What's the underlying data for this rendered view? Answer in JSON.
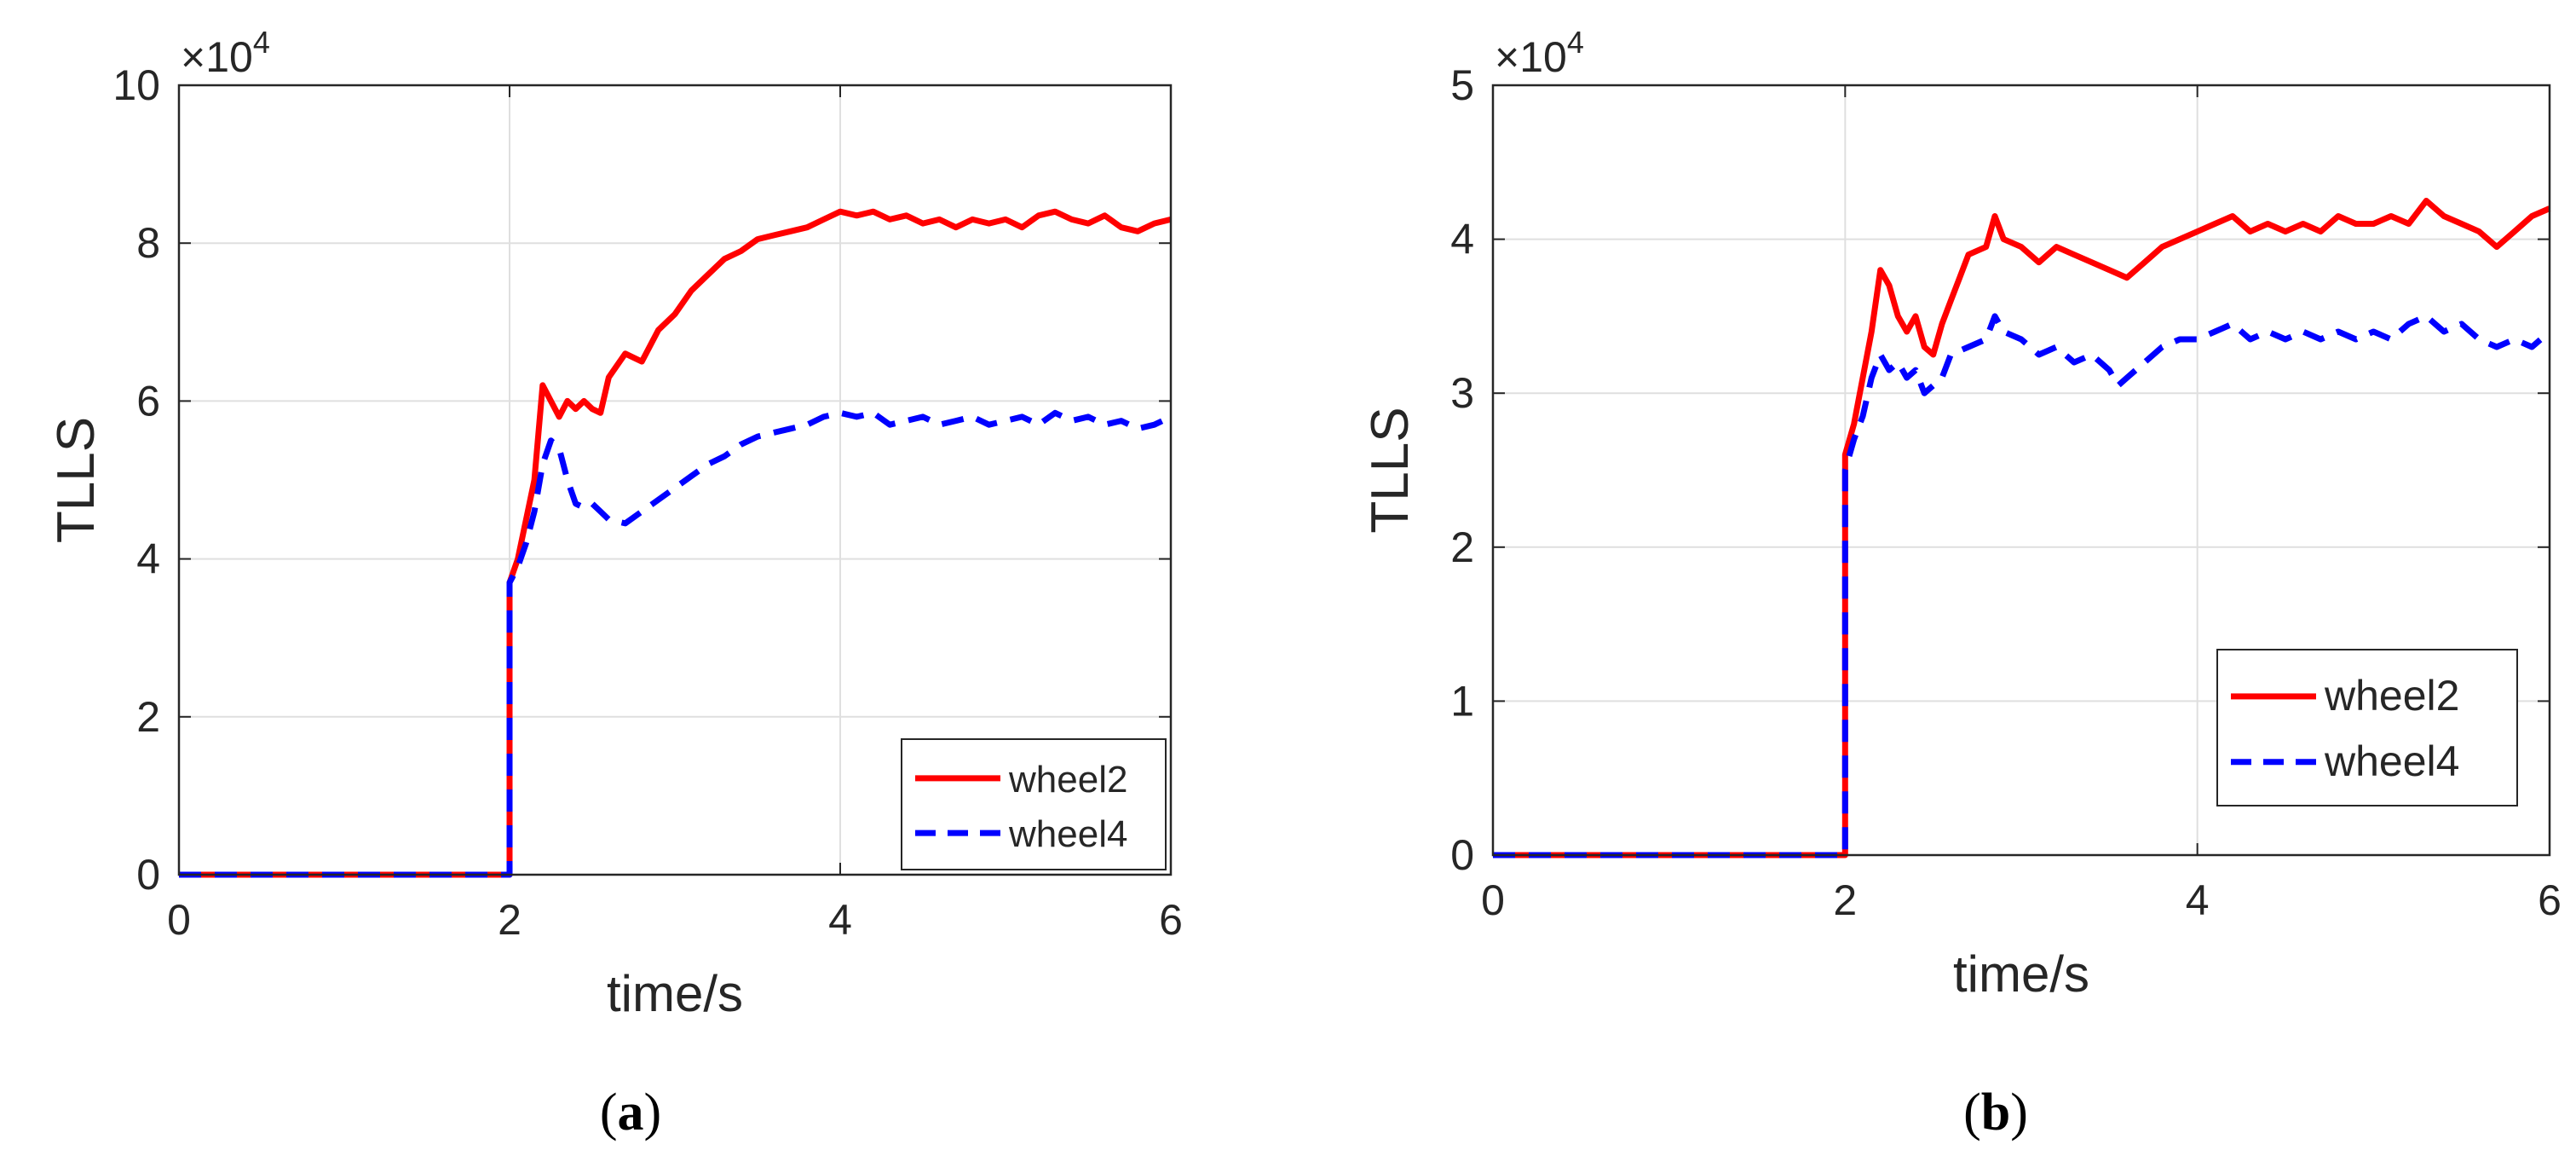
{
  "chart_data": [
    {
      "type": "line",
      "panel_label": "(a)",
      "xlabel": "time/s",
      "ylabel": "TLLS",
      "xlim": [
        0,
        6
      ],
      "ylim": [
        0,
        10
      ],
      "y_scale_label": "×10^4",
      "y_multiplier": 10000,
      "x_ticks": [
        0,
        2,
        4,
        6
      ],
      "y_ticks": [
        0,
        2,
        4,
        6,
        8,
        10
      ],
      "x_tick_labels": [
        "0",
        "2",
        "4",
        "6"
      ],
      "y_tick_labels": [
        "0",
        "2",
        "4",
        "6",
        "8",
        "10"
      ],
      "grid": true,
      "legend": {
        "position": "bottom-right",
        "entries": [
          "wheel2",
          "wheel4"
        ]
      },
      "series": [
        {
          "name": "wheel2",
          "color": "#ff0000",
          "style": "solid",
          "points": [
            [
              0,
              0
            ],
            [
              2.0,
              0
            ],
            [
              2.0,
              3.7
            ],
            [
              2.05,
              4.0
            ],
            [
              2.1,
              4.5
            ],
            [
              2.15,
              5.0
            ],
            [
              2.2,
              6.2
            ],
            [
              2.25,
              6.0
            ],
            [
              2.3,
              5.8
            ],
            [
              2.35,
              6.0
            ],
            [
              2.4,
              5.9
            ],
            [
              2.45,
              6.0
            ],
            [
              2.5,
              5.9
            ],
            [
              2.55,
              5.85
            ],
            [
              2.6,
              6.3
            ],
            [
              2.7,
              6.6
            ],
            [
              2.8,
              6.5
            ],
            [
              2.9,
              6.9
            ],
            [
              3.0,
              7.1
            ],
            [
              3.1,
              7.4
            ],
            [
              3.2,
              7.6
            ],
            [
              3.3,
              7.8
            ],
            [
              3.4,
              7.9
            ],
            [
              3.5,
              8.05
            ],
            [
              3.6,
              8.1
            ],
            [
              3.7,
              8.15
            ],
            [
              3.8,
              8.2
            ],
            [
              3.9,
              8.3
            ],
            [
              4.0,
              8.4
            ],
            [
              4.1,
              8.35
            ],
            [
              4.2,
              8.4
            ],
            [
              4.3,
              8.3
            ],
            [
              4.4,
              8.35
            ],
            [
              4.5,
              8.25
            ],
            [
              4.6,
              8.3
            ],
            [
              4.7,
              8.2
            ],
            [
              4.8,
              8.3
            ],
            [
              4.9,
              8.25
            ],
            [
              5.0,
              8.3
            ],
            [
              5.1,
              8.2
            ],
            [
              5.2,
              8.35
            ],
            [
              5.3,
              8.4
            ],
            [
              5.4,
              8.3
            ],
            [
              5.5,
              8.25
            ],
            [
              5.6,
              8.35
            ],
            [
              5.7,
              8.2
            ],
            [
              5.8,
              8.15
            ],
            [
              5.9,
              8.25
            ],
            [
              6.0,
              8.3
            ]
          ]
        },
        {
          "name": "wheel4",
          "color": "#0000ff",
          "style": "dashed",
          "points": [
            [
              0,
              0
            ],
            [
              2.0,
              0
            ],
            [
              2.0,
              3.7
            ],
            [
              2.05,
              3.9
            ],
            [
              2.1,
              4.2
            ],
            [
              2.15,
              4.6
            ],
            [
              2.2,
              5.2
            ],
            [
              2.25,
              5.5
            ],
            [
              2.3,
              5.4
            ],
            [
              2.35,
              5.0
            ],
            [
              2.4,
              4.7
            ],
            [
              2.45,
              4.65
            ],
            [
              2.5,
              4.7
            ],
            [
              2.55,
              4.6
            ],
            [
              2.6,
              4.5
            ],
            [
              2.7,
              4.45
            ],
            [
              2.8,
              4.6
            ],
            [
              2.9,
              4.75
            ],
            [
              3.0,
              4.9
            ],
            [
              3.1,
              5.05
            ],
            [
              3.2,
              5.2
            ],
            [
              3.3,
              5.3
            ],
            [
              3.4,
              5.45
            ],
            [
              3.5,
              5.55
            ],
            [
              3.6,
              5.6
            ],
            [
              3.7,
              5.65
            ],
            [
              3.8,
              5.7
            ],
            [
              3.9,
              5.8
            ],
            [
              4.0,
              5.85
            ],
            [
              4.1,
              5.8
            ],
            [
              4.2,
              5.85
            ],
            [
              4.3,
              5.7
            ],
            [
              4.4,
              5.75
            ],
            [
              4.5,
              5.8
            ],
            [
              4.6,
              5.7
            ],
            [
              4.7,
              5.75
            ],
            [
              4.8,
              5.8
            ],
            [
              4.9,
              5.7
            ],
            [
              5.0,
              5.75
            ],
            [
              5.1,
              5.8
            ],
            [
              5.2,
              5.7
            ],
            [
              5.3,
              5.85
            ],
            [
              5.4,
              5.75
            ],
            [
              5.5,
              5.8
            ],
            [
              5.6,
              5.7
            ],
            [
              5.7,
              5.75
            ],
            [
              5.8,
              5.65
            ],
            [
              5.9,
              5.7
            ],
            [
              6.0,
              5.8
            ]
          ]
        }
      ]
    },
    {
      "type": "line",
      "panel_label": "(b)",
      "xlabel": "time/s",
      "ylabel": "TLLS",
      "xlim": [
        0,
        6
      ],
      "ylim": [
        0,
        5
      ],
      "y_scale_label": "×10^4",
      "y_multiplier": 10000,
      "x_ticks": [
        0,
        2,
        4,
        6
      ],
      "y_ticks": [
        0,
        1,
        2,
        3,
        4,
        5
      ],
      "x_tick_labels": [
        "0",
        "2",
        "4",
        "6"
      ],
      "y_tick_labels": [
        "0",
        "1",
        "2",
        "3",
        "4",
        "5"
      ],
      "grid": true,
      "legend": {
        "position": "right",
        "entries": [
          "wheel2",
          "wheel4"
        ]
      },
      "series": [
        {
          "name": "wheel2",
          "color": "#ff0000",
          "style": "solid",
          "points": [
            [
              0,
              0
            ],
            [
              2.0,
              0
            ],
            [
              2.0,
              2.6
            ],
            [
              2.05,
              2.8
            ],
            [
              2.1,
              3.1
            ],
            [
              2.15,
              3.4
            ],
            [
              2.2,
              3.8
            ],
            [
              2.25,
              3.7
            ],
            [
              2.3,
              3.5
            ],
            [
              2.35,
              3.4
            ],
            [
              2.4,
              3.5
            ],
            [
              2.45,
              3.3
            ],
            [
              2.5,
              3.25
            ],
            [
              2.55,
              3.45
            ],
            [
              2.6,
              3.6
            ],
            [
              2.65,
              3.75
            ],
            [
              2.7,
              3.9
            ],
            [
              2.8,
              3.95
            ],
            [
              2.85,
              4.15
            ],
            [
              2.9,
              4.0
            ],
            [
              3.0,
              3.95
            ],
            [
              3.1,
              3.85
            ],
            [
              3.2,
              3.95
            ],
            [
              3.3,
              3.9
            ],
            [
              3.4,
              3.85
            ],
            [
              3.5,
              3.8
            ],
            [
              3.6,
              3.75
            ],
            [
              3.7,
              3.85
            ],
            [
              3.8,
              3.95
            ],
            [
              3.9,
              4.0
            ],
            [
              4.0,
              4.05
            ],
            [
              4.1,
              4.1
            ],
            [
              4.2,
              4.15
            ],
            [
              4.3,
              4.05
            ],
            [
              4.4,
              4.1
            ],
            [
              4.5,
              4.05
            ],
            [
              4.6,
              4.1
            ],
            [
              4.7,
              4.05
            ],
            [
              4.8,
              4.15
            ],
            [
              4.9,
              4.1
            ],
            [
              5.0,
              4.1
            ],
            [
              5.1,
              4.15
            ],
            [
              5.2,
              4.1
            ],
            [
              5.3,
              4.25
            ],
            [
              5.4,
              4.15
            ],
            [
              5.5,
              4.1
            ],
            [
              5.6,
              4.05
            ],
            [
              5.7,
              3.95
            ],
            [
              5.8,
              4.05
            ],
            [
              5.9,
              4.15
            ],
            [
              6.0,
              4.2
            ]
          ]
        },
        {
          "name": "wheel4",
          "color": "#0000ff",
          "style": "dashed",
          "points": [
            [
              0,
              0
            ],
            [
              2.0,
              0
            ],
            [
              2.0,
              2.5
            ],
            [
              2.05,
              2.7
            ],
            [
              2.1,
              2.85
            ],
            [
              2.15,
              3.1
            ],
            [
              2.2,
              3.25
            ],
            [
              2.25,
              3.15
            ],
            [
              2.3,
              3.2
            ],
            [
              2.35,
              3.1
            ],
            [
              2.4,
              3.15
            ],
            [
              2.45,
              3.0
            ],
            [
              2.5,
              3.05
            ],
            [
              2.55,
              3.1
            ],
            [
              2.6,
              3.25
            ],
            [
              2.7,
              3.3
            ],
            [
              2.8,
              3.35
            ],
            [
              2.85,
              3.5
            ],
            [
              2.9,
              3.4
            ],
            [
              3.0,
              3.35
            ],
            [
              3.1,
              3.25
            ],
            [
              3.2,
              3.3
            ],
            [
              3.3,
              3.2
            ],
            [
              3.4,
              3.25
            ],
            [
              3.5,
              3.15
            ],
            [
              3.55,
              3.05
            ],
            [
              3.6,
              3.1
            ],
            [
              3.7,
              3.2
            ],
            [
              3.8,
              3.3
            ],
            [
              3.9,
              3.35
            ],
            [
              4.0,
              3.35
            ],
            [
              4.1,
              3.4
            ],
            [
              4.2,
              3.45
            ],
            [
              4.3,
              3.35
            ],
            [
              4.4,
              3.4
            ],
            [
              4.5,
              3.35
            ],
            [
              4.6,
              3.4
            ],
            [
              4.7,
              3.35
            ],
            [
              4.8,
              3.4
            ],
            [
              4.9,
              3.35
            ],
            [
              5.0,
              3.4
            ],
            [
              5.1,
              3.35
            ],
            [
              5.2,
              3.45
            ],
            [
              5.3,
              3.5
            ],
            [
              5.4,
              3.4
            ],
            [
              5.5,
              3.45
            ],
            [
              5.6,
              3.35
            ],
            [
              5.7,
              3.3
            ],
            [
              5.8,
              3.35
            ],
            [
              5.9,
              3.3
            ],
            [
              6.0,
              3.4
            ]
          ]
        }
      ]
    }
  ]
}
